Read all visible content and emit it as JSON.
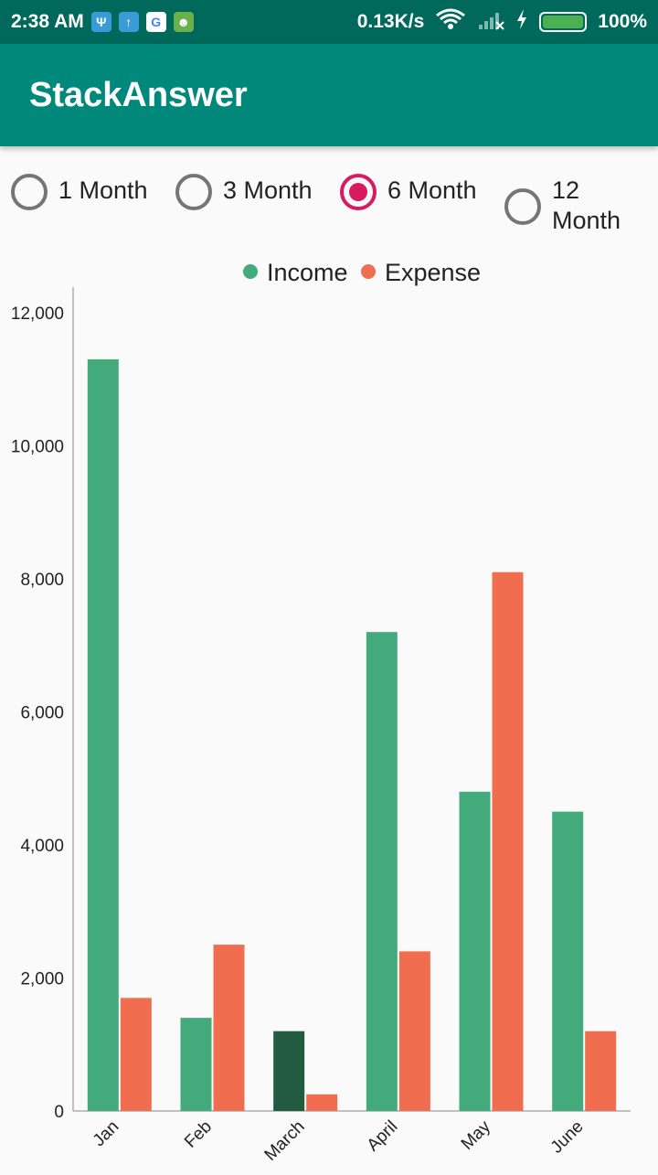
{
  "status_bar": {
    "time": "2:38 AM",
    "network_speed": "0.13K/s",
    "battery_text": "100%",
    "icons": [
      "usb-icon",
      "upload-icon",
      "google-icon",
      "android-icon",
      "wifi-icon",
      "signal-icon",
      "charging-icon",
      "battery-icon"
    ]
  },
  "app_bar": {
    "title": "StackAnswer"
  },
  "period_options": [
    {
      "label": "1 Month",
      "checked": false
    },
    {
      "label": "3 Month",
      "checked": false
    },
    {
      "label": "6 Month",
      "checked": true
    },
    {
      "label": "12 Month",
      "checked": false
    }
  ],
  "chart_data": {
    "type": "bar",
    "categories": [
      "Jan",
      "Feb",
      "March",
      "April",
      "May",
      "June"
    ],
    "series": [
      {
        "name": "Income",
        "color": "#43aa7b",
        "values": [
          11300,
          1400,
          1200,
          7200,
          4800,
          4500
        ]
      },
      {
        "name": "Expense",
        "color": "#f06e4f",
        "values": [
          1700,
          2500,
          250,
          2400,
          8100,
          1200
        ]
      }
    ],
    "highlight": {
      "series": 0,
      "index": 2,
      "color": "#225b40"
    },
    "y_ticks": [
      "0",
      "2,000",
      "4,000",
      "6,000",
      "8,000",
      "10,000",
      "12,000"
    ],
    "ylim": [
      0,
      12000
    ],
    "legend_position": "top-center",
    "grid": false
  }
}
